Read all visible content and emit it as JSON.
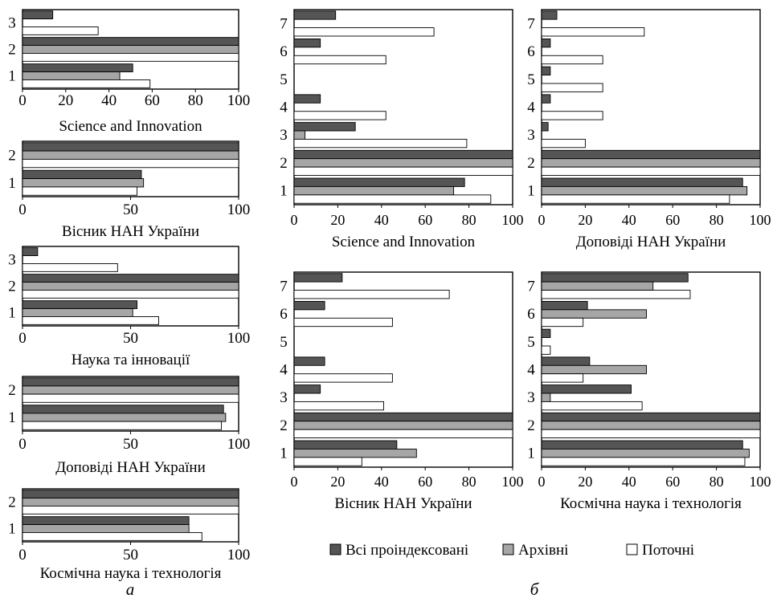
{
  "colors": {
    "all": "#555555",
    "archive": "#a6a6a6",
    "current": "#ffffff"
  },
  "panel_labels": {
    "a": "а",
    "b": "б"
  },
  "legend": {
    "items": [
      {
        "label": "Всі проіндексовані",
        "color": "#555555"
      },
      {
        "label": "Архівні",
        "color": "#a6a6a6"
      },
      {
        "label": "Поточні",
        "color": "#ffffff"
      }
    ]
  },
  "chart_data": [
    {
      "type": "bar",
      "orientation": "horizontal",
      "xlabel": "Science and Innovation",
      "categories": [
        "1",
        "2",
        "3"
      ],
      "xlim": [
        0,
        100
      ],
      "xticks": [
        "0",
        "20",
        "40",
        "60",
        "80",
        "100"
      ],
      "series": [
        {
          "name": "Всі проіндексовані",
          "values": [
            51,
            100,
            14
          ]
        },
        {
          "name": "Архівні",
          "values": [
            45,
            100,
            0
          ]
        },
        {
          "name": "Поточні",
          "values": [
            59,
            100,
            35
          ]
        }
      ]
    },
    {
      "type": "bar",
      "orientation": "horizontal",
      "xlabel": "Вісник НАН України",
      "categories": [
        "1",
        "2"
      ],
      "xlim": [
        0,
        100
      ],
      "xticks": [
        "0",
        "50",
        "100"
      ],
      "series": [
        {
          "name": "Всі проіндексовані",
          "values": [
            55,
            100
          ]
        },
        {
          "name": "Архівні",
          "values": [
            56,
            100
          ]
        },
        {
          "name": "Поточні",
          "values": [
            53,
            100
          ]
        }
      ]
    },
    {
      "type": "bar",
      "orientation": "horizontal",
      "xlabel": "Наука та інновації",
      "categories": [
        "1",
        "2",
        "3"
      ],
      "xlim": [
        0,
        100
      ],
      "xticks": [
        "0",
        "50",
        "100"
      ],
      "series": [
        {
          "name": "Всі проіндексовані",
          "values": [
            53,
            100,
            7
          ]
        },
        {
          "name": "Архівні",
          "values": [
            51,
            100,
            0
          ]
        },
        {
          "name": "Поточні",
          "values": [
            63,
            100,
            44
          ]
        }
      ]
    },
    {
      "type": "bar",
      "orientation": "horizontal",
      "xlabel": "Доповіді НАН України",
      "categories": [
        "1",
        "2"
      ],
      "xlim": [
        0,
        100
      ],
      "xticks": [
        "0",
        "50",
        "100"
      ],
      "series": [
        {
          "name": "Всі проіндексовані",
          "values": [
            93,
            100
          ]
        },
        {
          "name": "Архівні",
          "values": [
            94,
            100
          ]
        },
        {
          "name": "Поточні",
          "values": [
            92,
            100
          ]
        }
      ]
    },
    {
      "type": "bar",
      "orientation": "horizontal",
      "xlabel": "Космічна наука і технологія",
      "categories": [
        "1",
        "2"
      ],
      "xlim": [
        0,
        100
      ],
      "xticks": [
        "0",
        "50",
        "100"
      ],
      "series": [
        {
          "name": "Всі проіндексовані",
          "values": [
            77,
            100
          ]
        },
        {
          "name": "Архівні",
          "values": [
            77,
            100
          ]
        },
        {
          "name": "Поточні",
          "values": [
            83,
            100
          ]
        }
      ]
    },
    {
      "type": "bar",
      "orientation": "horizontal",
      "xlabel": "Science and Innovation",
      "categories": [
        "1",
        "2",
        "3",
        "4",
        "5",
        "6",
        "7"
      ],
      "xlim": [
        0,
        100
      ],
      "xticks": [
        "0",
        "20",
        "40",
        "60",
        "80",
        "100"
      ],
      "series": [
        {
          "name": "Всі проіндексовані",
          "values": [
            78,
            100,
            28,
            12,
            0,
            12,
            19
          ]
        },
        {
          "name": "Архівні",
          "values": [
            73,
            100,
            5,
            0,
            0,
            0,
            0
          ]
        },
        {
          "name": "Поточні",
          "values": [
            90,
            100,
            79,
            42,
            0,
            42,
            64
          ]
        }
      ]
    },
    {
      "type": "bar",
      "orientation": "horizontal",
      "xlabel": "Доповіді НАН України",
      "categories": [
        "1",
        "2",
        "3",
        "4",
        "5",
        "6",
        "7"
      ],
      "xlim": [
        0,
        100
      ],
      "xticks": [
        "0",
        "20",
        "40",
        "60",
        "80",
        "100"
      ],
      "series": [
        {
          "name": "Всі проіндексовані",
          "values": [
            92,
            100,
            3,
            4,
            4,
            4,
            7
          ]
        },
        {
          "name": "Архівні",
          "values": [
            94,
            100,
            0,
            0,
            0,
            0,
            0
          ]
        },
        {
          "name": "Поточні",
          "values": [
            86,
            100,
            20,
            28,
            28,
            28,
            47
          ]
        }
      ]
    },
    {
      "type": "bar",
      "orientation": "horizontal",
      "xlabel": "Вісник НАН України",
      "categories": [
        "1",
        "2",
        "3",
        "4",
        "5",
        "6",
        "7"
      ],
      "xlim": [
        0,
        100
      ],
      "xticks": [
        "0",
        "20",
        "40",
        "60",
        "80",
        "100"
      ],
      "series": [
        {
          "name": "Всі проіндексовані",
          "values": [
            47,
            100,
            12,
            14,
            0,
            14,
            22
          ]
        },
        {
          "name": "Архівні",
          "values": [
            56,
            100,
            0,
            0,
            0,
            0,
            0
          ]
        },
        {
          "name": "Поточні",
          "values": [
            31,
            100,
            41,
            45,
            0,
            45,
            71
          ]
        }
      ]
    },
    {
      "type": "bar",
      "orientation": "horizontal",
      "xlabel": "Космічна наука і технологія",
      "categories": [
        "1",
        "2",
        "3",
        "4",
        "5",
        "6",
        "7"
      ],
      "xlim": [
        0,
        100
      ],
      "xticks": [
        "0",
        "20",
        "40",
        "60",
        "80",
        "100"
      ],
      "series": [
        {
          "name": "Всі проіндексовані",
          "values": [
            92,
            100,
            41,
            22,
            4,
            21,
            67
          ]
        },
        {
          "name": "Архівні",
          "values": [
            95,
            100,
            4,
            48,
            0,
            48,
            51
          ]
        },
        {
          "name": "Поточні",
          "values": [
            93,
            100,
            46,
            19,
            4,
            19,
            68
          ]
        }
      ]
    }
  ]
}
